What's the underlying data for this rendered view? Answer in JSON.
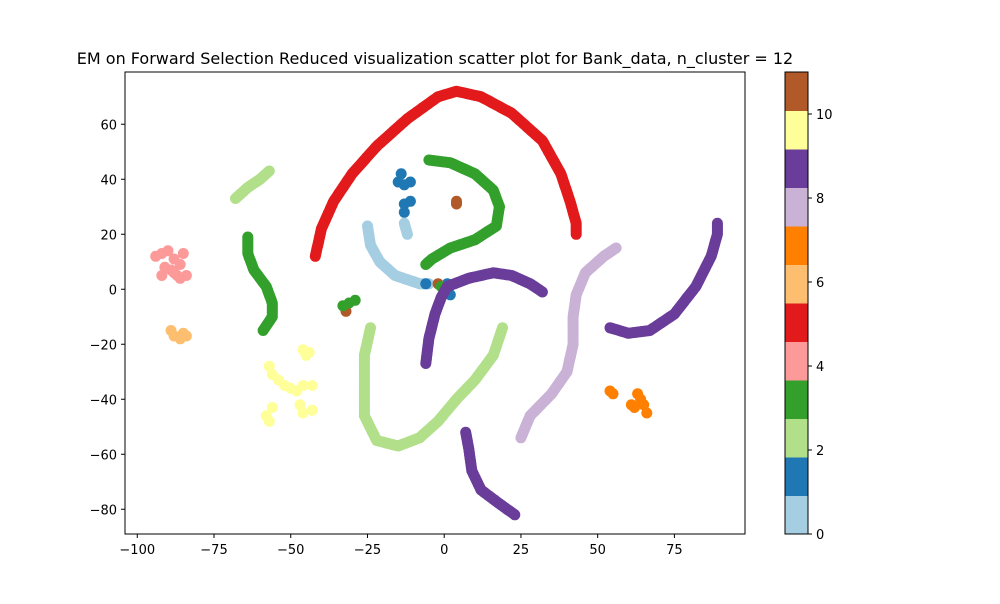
{
  "chart_data": {
    "type": "scatter",
    "title": "EM on Forward Selection Reduced visualization scatter plot for Bank_data, n_cluster = 12",
    "xlabel": "",
    "ylabel": "",
    "xlim": [
      -104,
      98
    ],
    "ylim": [
      -89,
      79
    ],
    "x_ticks": [
      -100,
      -75,
      -50,
      -25,
      0,
      25,
      50,
      75
    ],
    "x_tick_labels": [
      "−100",
      "−75",
      "−50",
      "−25",
      "0",
      "25",
      "50",
      "75"
    ],
    "y_ticks": [
      -80,
      -60,
      -40,
      -20,
      0,
      20,
      40,
      60
    ],
    "y_tick_labels": [
      "−80",
      "−60",
      "−40",
      "−20",
      "0",
      "20",
      "40",
      "60"
    ],
    "grid": false,
    "colorbar": {
      "min": 0,
      "max": 11,
      "ticks": [
        0,
        2,
        4,
        6,
        8,
        10
      ],
      "tick_labels": [
        "0",
        "2",
        "4",
        "6",
        "8",
        "10"
      ],
      "colors": [
        "#a6cee3",
        "#1f78b4",
        "#b2df8a",
        "#33a02c",
        "#fb9a99",
        "#e31a1c",
        "#fdbf6f",
        "#ff7f00",
        "#cab2d6",
        "#6a3d9a",
        "#ffff99",
        "#b15928"
      ]
    },
    "series": [
      {
        "cluster": 5,
        "kind": "curve",
        "points": [
          [
            -42,
            12
          ],
          [
            -40,
            22
          ],
          [
            -36,
            32
          ],
          [
            -30,
            42
          ],
          [
            -22,
            52
          ],
          [
            -12,
            62
          ],
          [
            -2,
            70
          ],
          [
            4,
            72
          ],
          [
            12,
            70
          ],
          [
            22,
            64
          ],
          [
            32,
            54
          ],
          [
            38,
            42
          ],
          [
            41,
            32
          ],
          [
            43,
            24
          ],
          [
            43,
            20
          ]
        ]
      },
      {
        "cluster": 3,
        "kind": "curve",
        "points": [
          [
            -5,
            47
          ],
          [
            2,
            46
          ],
          [
            10,
            42
          ],
          [
            16,
            36
          ],
          [
            18,
            30
          ],
          [
            17,
            23
          ],
          [
            10,
            18
          ],
          [
            2,
            15
          ],
          [
            -4,
            11
          ],
          [
            -6,
            9
          ]
        ]
      },
      {
        "cluster": 3,
        "kind": "curve",
        "points": [
          [
            -64,
            19
          ],
          [
            -64,
            13
          ],
          [
            -62,
            7
          ],
          [
            -58,
            1
          ],
          [
            -56,
            -5
          ],
          [
            -56,
            -10
          ],
          [
            -59,
            -15
          ]
        ]
      },
      {
        "cluster": 2,
        "kind": "curve",
        "points": [
          [
            -68,
            33
          ],
          [
            -64,
            37
          ],
          [
            -60,
            40
          ],
          [
            -57,
            43
          ]
        ]
      },
      {
        "cluster": 0,
        "kind": "curve",
        "points": [
          [
            -25,
            23
          ],
          [
            -24,
            16
          ],
          [
            -21,
            10
          ],
          [
            -16,
            5
          ],
          [
            -8,
            2
          ],
          [
            -5,
            2
          ]
        ]
      },
      {
        "cluster": 0,
        "kind": "curve",
        "points": [
          [
            -13,
            24
          ],
          [
            -12,
            20
          ]
        ]
      },
      {
        "cluster": 1,
        "kind": "points",
        "points": [
          [
            -14,
            42
          ],
          [
            -15,
            39
          ],
          [
            -13,
            38
          ],
          [
            -11,
            39
          ],
          [
            -13,
            31
          ],
          [
            -11,
            32
          ],
          [
            -13,
            28
          ],
          [
            -6,
            2
          ],
          [
            1,
            2
          ],
          [
            2,
            -2
          ]
        ]
      },
      {
        "cluster": 11,
        "kind": "points",
        "points": [
          [
            4,
            31
          ],
          [
            4,
            32
          ],
          [
            -2,
            2
          ],
          [
            -32,
            -8
          ]
        ]
      },
      {
        "cluster": 3,
        "kind": "points",
        "points": [
          [
            -33,
            -6
          ],
          [
            -31,
            -5
          ],
          [
            -29,
            -4
          ],
          [
            -1,
            1
          ]
        ]
      },
      {
        "cluster": 9,
        "kind": "curve",
        "points": [
          [
            -6,
            -27
          ],
          [
            -5,
            -18
          ],
          [
            -3,
            -9
          ],
          [
            -1,
            -3
          ],
          [
            1,
            1
          ],
          [
            8,
            4
          ],
          [
            16,
            6
          ],
          [
            22,
            5
          ],
          [
            28,
            2
          ],
          [
            32,
            -1
          ]
        ]
      },
      {
        "cluster": 9,
        "kind": "curve",
        "points": [
          [
            54,
            -14
          ],
          [
            60,
            -16
          ],
          [
            67,
            -15
          ],
          [
            75,
            -9
          ],
          [
            82,
            1
          ],
          [
            87,
            12
          ],
          [
            89,
            20
          ],
          [
            89,
            24
          ]
        ]
      },
      {
        "cluster": 9,
        "kind": "curve",
        "points": [
          [
            7,
            -52
          ],
          [
            8,
            -58
          ],
          [
            9,
            -66
          ],
          [
            12,
            -73
          ],
          [
            18,
            -78
          ],
          [
            23,
            -82
          ]
        ]
      },
      {
        "cluster": 8,
        "kind": "curve",
        "points": [
          [
            25,
            -54
          ],
          [
            28,
            -46
          ],
          [
            35,
            -38
          ],
          [
            40,
            -30
          ],
          [
            42,
            -20
          ],
          [
            42,
            -10
          ],
          [
            43,
            -2
          ],
          [
            46,
            6
          ],
          [
            52,
            12
          ],
          [
            56,
            15
          ]
        ]
      },
      {
        "cluster": 2,
        "kind": "curve",
        "points": [
          [
            -24,
            -14
          ],
          [
            -26,
            -24
          ],
          [
            -26,
            -36
          ],
          [
            -26,
            -46
          ],
          [
            -22,
            -55
          ],
          [
            -15,
            -57
          ],
          [
            -8,
            -54
          ],
          [
            -2,
            -48
          ],
          [
            4,
            -40
          ],
          [
            10,
            -33
          ],
          [
            16,
            -24
          ],
          [
            19,
            -14
          ]
        ]
      },
      {
        "cluster": 10,
        "kind": "points",
        "points": [
          [
            -57,
            -28
          ],
          [
            -56,
            -31
          ],
          [
            -54,
            -33
          ],
          [
            -52,
            -35
          ],
          [
            -50,
            -36
          ],
          [
            -48,
            -37
          ],
          [
            -46,
            -35
          ],
          [
            -43,
            -35
          ],
          [
            -56,
            -43
          ],
          [
            -58,
            -46
          ],
          [
            -57,
            -48
          ],
          [
            -47,
            -42
          ],
          [
            -46,
            -45
          ],
          [
            -43,
            -44
          ],
          [
            -46,
            -22
          ],
          [
            -45,
            -24
          ],
          [
            -44,
            -23
          ]
        ]
      },
      {
        "cluster": 4,
        "kind": "points",
        "points": [
          [
            -94,
            12
          ],
          [
            -92,
            13
          ],
          [
            -90,
            14
          ],
          [
            -88,
            11
          ],
          [
            -86,
            9
          ],
          [
            -91,
            8
          ],
          [
            -88,
            6
          ],
          [
            -84,
            5
          ],
          [
            -86,
            4
          ],
          [
            -92,
            5
          ],
          [
            -85,
            13
          ],
          [
            -89,
            7
          ],
          [
            -87,
            5
          ]
        ]
      },
      {
        "cluster": 6,
        "kind": "points",
        "points": [
          [
            -89,
            -15
          ],
          [
            -88,
            -17
          ],
          [
            -86,
            -18
          ],
          [
            -85,
            -16
          ],
          [
            -84,
            -17
          ]
        ]
      },
      {
        "cluster": 7,
        "kind": "points",
        "points": [
          [
            54,
            -37
          ],
          [
            55,
            -38
          ],
          [
            63,
            -38
          ],
          [
            64,
            -40
          ],
          [
            65,
            -42
          ],
          [
            66,
            -45
          ],
          [
            62,
            -43
          ],
          [
            61,
            -42
          ]
        ]
      }
    ]
  }
}
